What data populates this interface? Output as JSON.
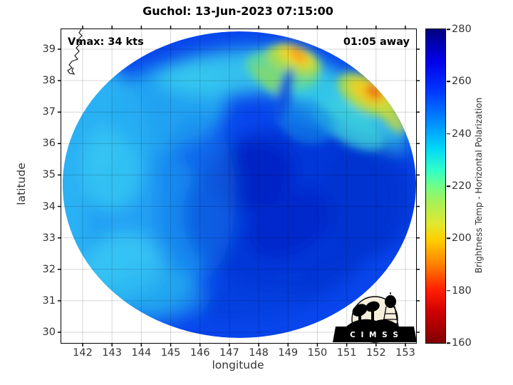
{
  "title": "Guchol: 13-Jun-2023 07:15:00",
  "annotations": {
    "vmax": "Vmax: 34 kts",
    "away": "01:05 away"
  },
  "axes": {
    "x": {
      "label": "longitude",
      "ticks": [
        "142",
        "143",
        "144",
        "145",
        "146",
        "147",
        "148",
        "149",
        "150",
        "151",
        "152",
        "153"
      ]
    },
    "y": {
      "label": "latitude",
      "ticks": [
        "39",
        "38",
        "37",
        "36",
        "35",
        "34",
        "33",
        "32",
        "31",
        "30"
      ]
    }
  },
  "colorbar": {
    "label": "Brightness Temp - Horizontal Polarization",
    "ticks": [
      "280",
      "260",
      "240",
      "220",
      "200",
      "180",
      "160"
    ],
    "min": 160,
    "max": 280,
    "colormap": "jet-reversed"
  },
  "logo": {
    "text": "C I M S S",
    "name": "cimss-logo"
  },
  "icons": {
    "satellite-dish-icon": "black dish silhouettes in CIMSS logo",
    "water-tower-icon": "black water tower silhouette in CIMSS logo"
  },
  "chart_data": {
    "type": "heatmap",
    "title": "Guchol: 13-Jun-2023 07:15:00",
    "storm_name": "Guchol",
    "datetime": "13-Jun-2023 07:15:00",
    "vmax_kts": 34,
    "time_offset": "01:05 away",
    "xlabel": "longitude",
    "ylabel": "latitude",
    "xlim": [
      141.3,
      153.4
    ],
    "ylim": [
      29.7,
      39.6
    ],
    "x_ticks": [
      142,
      143,
      144,
      145,
      146,
      147,
      148,
      149,
      150,
      151,
      152,
      153
    ],
    "y_ticks": [
      30,
      31,
      32,
      33,
      34,
      35,
      36,
      37,
      38,
      39
    ],
    "grid": true,
    "colorbar": {
      "label": "Brightness Temp - Horizontal Polarization",
      "units": "K",
      "min": 160,
      "max": 280,
      "ticks": [
        160,
        180,
        200,
        220,
        240,
        260,
        280
      ],
      "orientation": "vertical-right",
      "colormap": "jet-reversed (red=cold 160K at bottom, navy=warm 280K at top)"
    },
    "swath": {
      "shape": "circular",
      "center_lon": 147.4,
      "center_lat": 34.6,
      "radius_deg_lat": 4.9,
      "radius_deg_lon": 6.0
    },
    "features": [
      {
        "name": "convective cold cluster NW (yellow/orange)",
        "lon": 148.9,
        "lat": 38.9,
        "value_K": 200
      },
      {
        "name": "convective cold cluster NE (yellow/orange-red)",
        "lon": 151.6,
        "lat": 37.7,
        "value_K": 193
      },
      {
        "name": "cyan arc band along northern rim",
        "lon": 146.5,
        "lat": 38.3,
        "value_K": 235
      },
      {
        "name": "light-blue/cyan western rim",
        "lon": 142.5,
        "lat": 34.5,
        "value_K": 244
      },
      {
        "name": "dark navy warm core region center-east",
        "lon": 148.3,
        "lat": 34.8,
        "value_K": 272
      },
      {
        "name": "medium blue background ocean",
        "lon": 146.0,
        "lat": 32.0,
        "value_K": 258
      },
      {
        "name": "Japan coastline fragment",
        "lon": 141.8,
        "lat": 39.0,
        "value_K": null
      }
    ]
  }
}
